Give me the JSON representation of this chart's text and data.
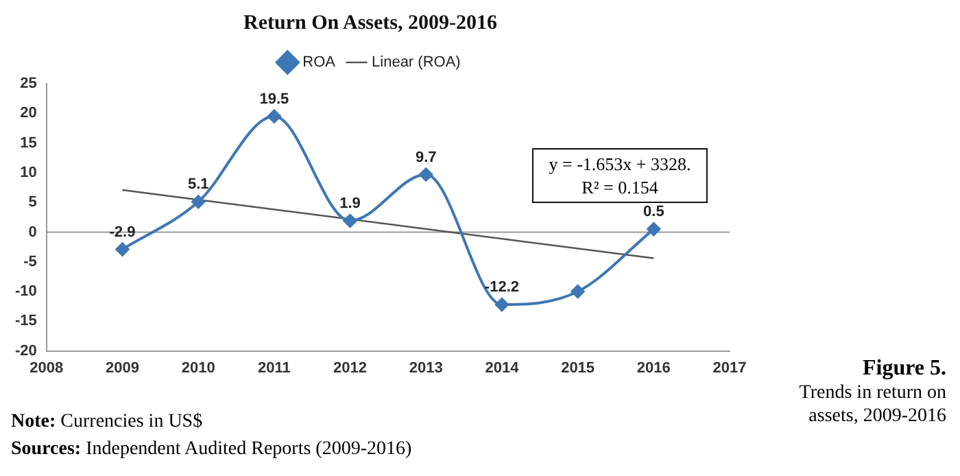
{
  "chart_data": {
    "type": "line",
    "title": "Return On Assets, 2009-2016",
    "x": [
      2009,
      2010,
      2011,
      2012,
      2013,
      2014,
      2015,
      2016
    ],
    "series": [
      {
        "name": "ROA",
        "color": "#3f76b5",
        "values": [
          -2.9,
          5.1,
          19.5,
          1.9,
          9.7,
          -12.2,
          -10,
          0.5
        ],
        "marker": "diamond",
        "value_labels": [
          "-2.9",
          "5.1",
          "19.5",
          "1.9",
          "9.7",
          "-12.2",
          null,
          "0.5"
        ]
      },
      {
        "name": "Linear (ROA)",
        "type": "line",
        "color": "#555555",
        "x": [
          2009,
          2016
        ],
        "values": [
          7.1,
          -4.4
        ],
        "marker": "none"
      }
    ],
    "xlim": [
      2008,
      2017
    ],
    "xticks": [
      2008,
      2009,
      2010,
      2011,
      2012,
      2013,
      2014,
      2015,
      2016,
      2017
    ],
    "ylim": [
      -20,
      25
    ],
    "yticks": [
      -20,
      -15,
      -10,
      -5,
      0,
      5,
      10,
      15,
      20,
      25
    ],
    "ref_lines": [
      {
        "axis": "y",
        "value": 0,
        "color": "#999999"
      }
    ],
    "grid": false,
    "legend": "top",
    "annotations": [
      "y = -1.653x + 3328.",
      "R² = 0.154",
      "Note: Currencies in US$",
      "Sources: Independent Audited Reports (2009-2016)",
      "Figure 5.",
      "Trends in return on assets, 2009-2016"
    ]
  }
}
